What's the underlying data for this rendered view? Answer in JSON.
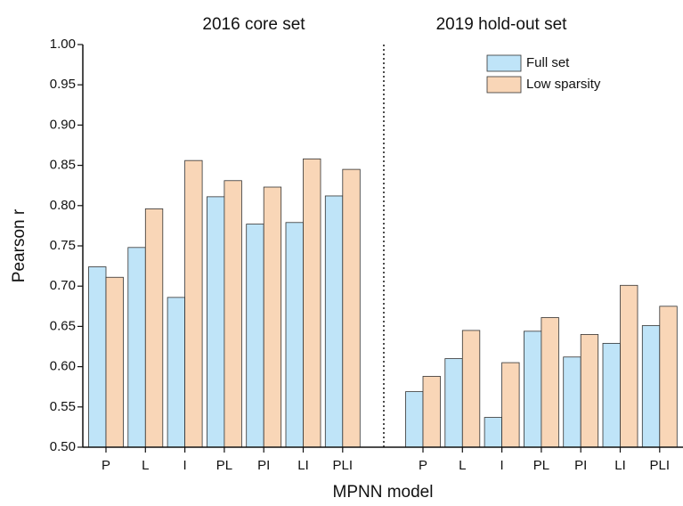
{
  "chart_data": {
    "type": "bar",
    "xlabel": "MPNN model",
    "ylabel": "Pearson r",
    "ylim": [
      0.5,
      1.0
    ],
    "yticks": [
      {
        "value": 0.5,
        "label": "0.50"
      },
      {
        "value": 0.55,
        "label": "0.55"
      },
      {
        "value": 0.6,
        "label": "0.60"
      },
      {
        "value": 0.65,
        "label": "0.65"
      },
      {
        "value": 0.7,
        "label": "0.70"
      },
      {
        "value": 0.75,
        "label": "0.75"
      },
      {
        "value": 0.8,
        "label": "0.80"
      },
      {
        "value": 0.85,
        "label": "0.85"
      },
      {
        "value": 0.9,
        "label": "0.90"
      },
      {
        "value": 0.95,
        "label": "0.95"
      },
      {
        "value": 1.0,
        "label": "1.00"
      }
    ],
    "legend": "upper right",
    "panels": [
      {
        "title": "2016 core set",
        "categories": [
          "P",
          "L",
          "I",
          "PL",
          "PI",
          "LI",
          "PLI"
        ]
      },
      {
        "title": "2019 hold-out set",
        "categories": [
          "P",
          "L",
          "I",
          "PL",
          "PI",
          "LI",
          "PLI"
        ]
      }
    ],
    "series": [
      {
        "name": "Full set",
        "color": "#bfe4f8",
        "values": [
          [
            0.724,
            0.748,
            0.686,
            0.811,
            0.777,
            0.779,
            0.812
          ],
          [
            0.569,
            0.61,
            0.537,
            0.644,
            0.612,
            0.629,
            0.651
          ]
        ]
      },
      {
        "name": "Low sparsity",
        "color": "#f9d6b7",
        "values": [
          [
            0.711,
            0.796,
            0.856,
            0.831,
            0.823,
            0.858,
            0.845
          ],
          [
            0.588,
            0.645,
            0.605,
            0.661,
            0.64,
            0.701,
            0.675
          ]
        ]
      }
    ]
  }
}
